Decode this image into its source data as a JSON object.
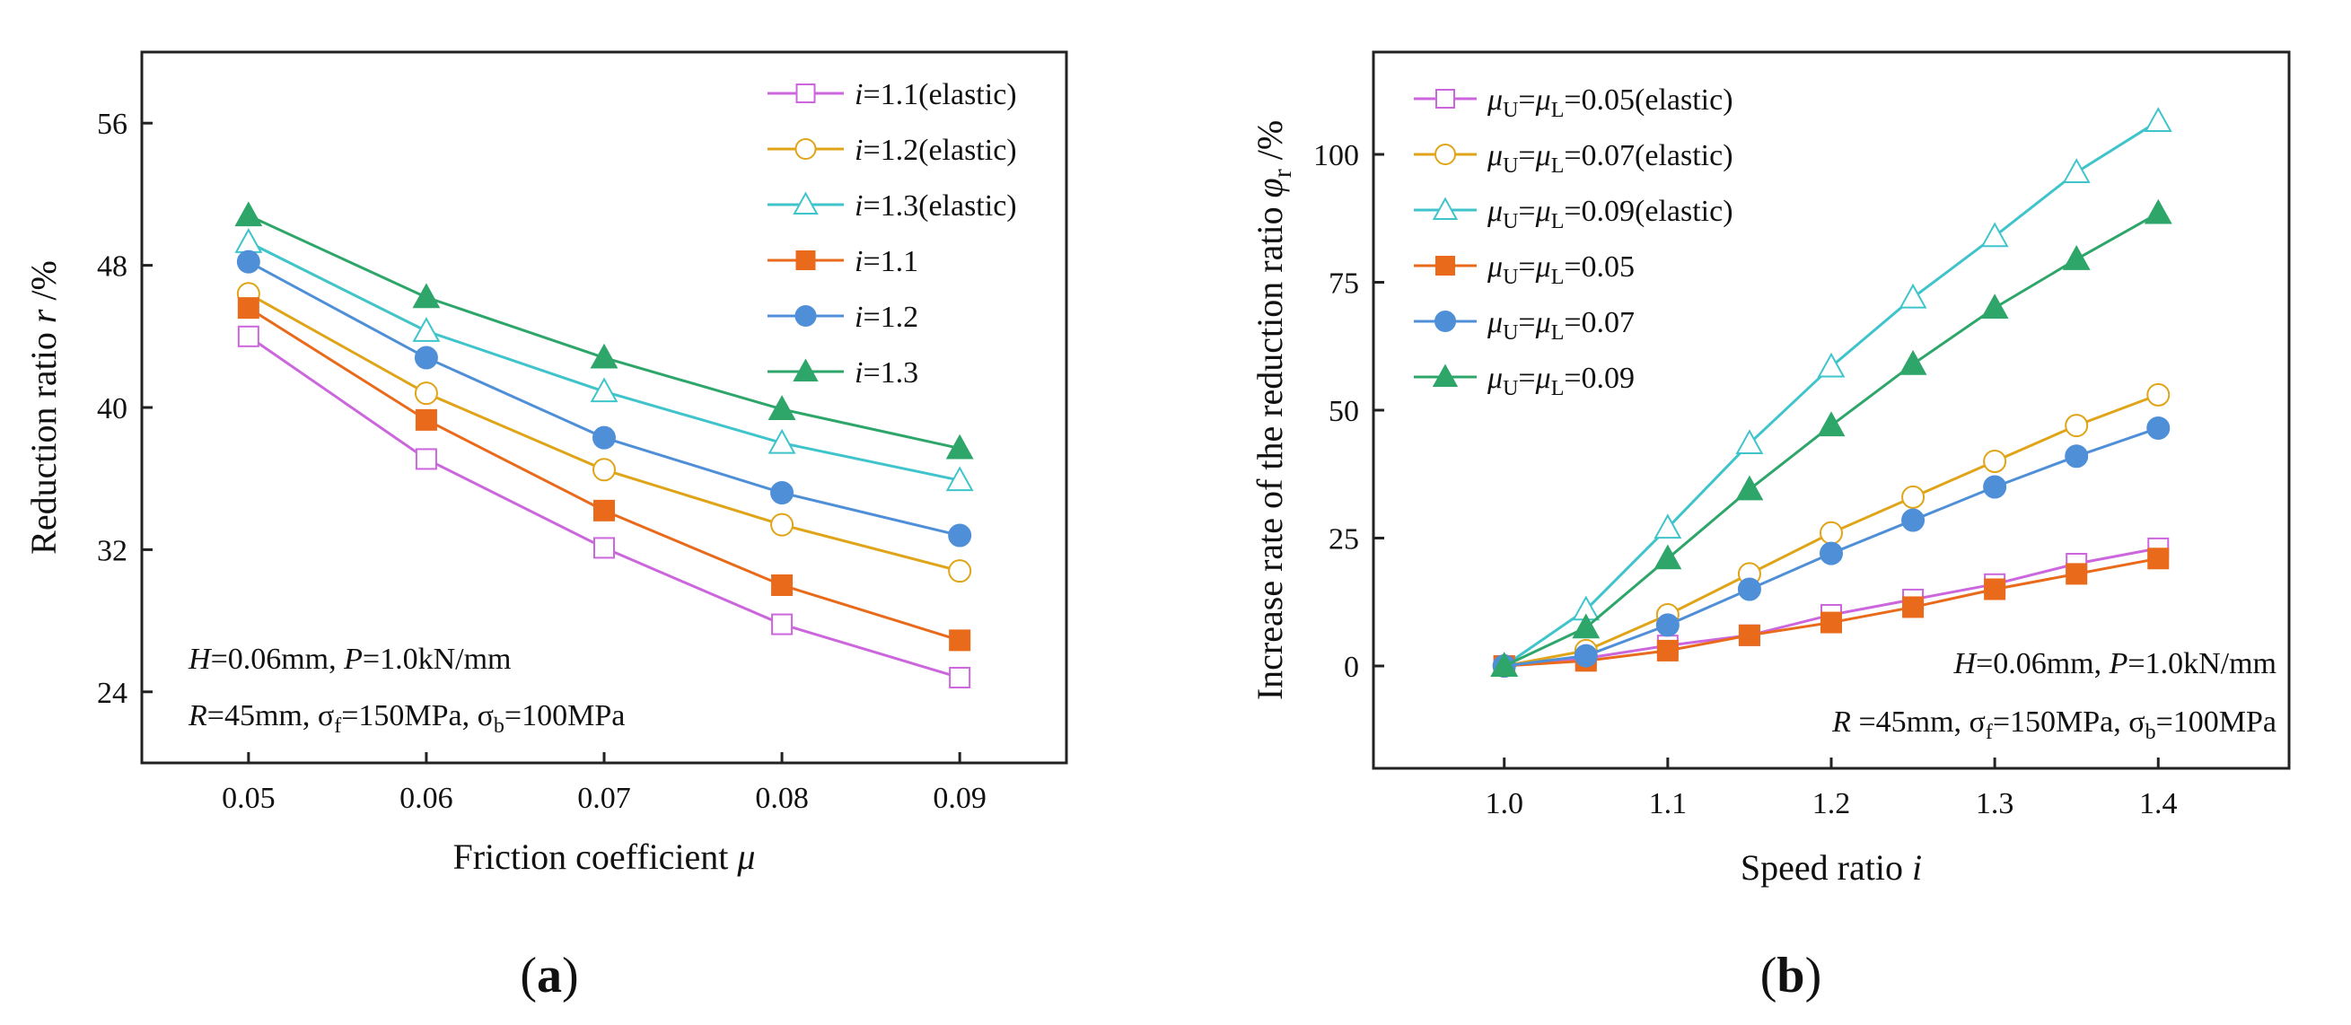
{
  "chart_data": [
    {
      "type": "line",
      "panel_label_parts": [
        "(",
        "a",
        ")"
      ],
      "xlabel_parts": [
        "Friction coefficient ",
        "μ"
      ],
      "ylabel_parts": [
        "Reduction ratio ",
        "r",
        " /%"
      ],
      "x": [
        0.05,
        0.06,
        0.07,
        0.08,
        0.09
      ],
      "xticks": [
        "0.05",
        "0.06",
        "0.07",
        "0.08",
        "0.09"
      ],
      "xlim": [
        0.044,
        0.096
      ],
      "yticks": [
        "24",
        "32",
        "40",
        "48",
        "56"
      ],
      "ytick_values": [
        24,
        32,
        40,
        48,
        56
      ],
      "ylim": [
        20,
        60
      ],
      "legend_position": "top-right",
      "annotation": {
        "line1": [
          "H",
          "=0.06mm, ",
          "P",
          "=1.0kN/mm"
        ],
        "line2": [
          "R",
          "=45mm, σ",
          "f",
          "=150MPa, σ",
          "b",
          "=100MPa"
        ]
      },
      "series": [
        {
          "legend_parts": [
            "i",
            "=1.1(elastic)"
          ],
          "color": "#cc66dd",
          "marker": "square",
          "filled": false,
          "values": [
            44.0,
            37.1,
            32.1,
            27.8,
            24.8
          ]
        },
        {
          "legend_parts": [
            "i",
            "=1.2(elastic)"
          ],
          "color": "#e0a418",
          "marker": "circle",
          "filled": false,
          "values": [
            46.4,
            40.8,
            36.5,
            33.4,
            30.8
          ]
        },
        {
          "legend_parts": [
            "i",
            "=1.3(elastic)"
          ],
          "color": "#3fc4cc",
          "marker": "triangle",
          "filled": false,
          "values": [
            49.3,
            44.3,
            40.9,
            38.0,
            35.9
          ]
        },
        {
          "legend_parts": [
            "i",
            "=1.1"
          ],
          "color": "#e86a1a",
          "marker": "square",
          "filled": true,
          "values": [
            45.6,
            39.3,
            34.2,
            30.0,
            26.9
          ]
        },
        {
          "legend_parts": [
            "i",
            "=1.2"
          ],
          "color": "#4f8fd8",
          "marker": "circle",
          "filled": true,
          "values": [
            48.2,
            42.8,
            38.3,
            35.2,
            32.8
          ]
        },
        {
          "legend_parts": [
            "i",
            "=1.3"
          ],
          "color": "#2ea66a",
          "marker": "triangle",
          "filled": true,
          "values": [
            50.8,
            46.2,
            42.8,
            39.9,
            37.7
          ]
        }
      ]
    },
    {
      "type": "line",
      "panel_label_parts": [
        "(",
        "b",
        ")"
      ],
      "xlabel_parts": [
        "Speed ratio ",
        "i"
      ],
      "ylabel_parts": [
        "Increase rate of the reduction ratio ",
        "φ",
        "r",
        " /%"
      ],
      "x": [
        1.0,
        1.05,
        1.1,
        1.15,
        1.2,
        1.25,
        1.3,
        1.35,
        1.4
      ],
      "xticks": [
        "1.0",
        "1.1",
        "1.2",
        "1.3",
        "1.4"
      ],
      "xtick_values": [
        1.0,
        1.1,
        1.2,
        1.3,
        1.4
      ],
      "xlim": [
        0.92,
        1.48
      ],
      "yticks": [
        "0",
        "25",
        "50",
        "75",
        "100"
      ],
      "ytick_values": [
        0,
        25,
        50,
        75,
        100
      ],
      "ylim": [
        -20,
        120
      ],
      "legend_position": "top-left",
      "annotation": {
        "line1": [
          "H",
          "=0.06mm, ",
          "P",
          "=1.0kN/mm"
        ],
        "line2": [
          "R",
          " =45mm, σ",
          "f",
          "=150MPa, σ",
          "b",
          "=100MPa"
        ]
      },
      "series": [
        {
          "legend_parts": [
            "μ",
            "U",
            "=",
            "μ",
            "L",
            "=0.05(elastic)"
          ],
          "color": "#cc66dd",
          "marker": "square",
          "filled": false,
          "values": [
            0,
            1.5,
            4,
            6,
            10,
            13,
            16,
            20,
            23
          ]
        },
        {
          "legend_parts": [
            "μ",
            "U",
            "=",
            "μ",
            "L",
            "=0.07(elastic)"
          ],
          "color": "#e0a418",
          "marker": "circle",
          "filled": false,
          "values": [
            0,
            3,
            10,
            18,
            26,
            33,
            40,
            47,
            53
          ]
        },
        {
          "legend_parts": [
            "μ",
            "U",
            "=",
            "μ",
            "L",
            "=0.09(elastic)"
          ],
          "color": "#3fc4cc",
          "marker": "triangle",
          "filled": false,
          "values": [
            0,
            11,
            27,
            43.5,
            58.5,
            72,
            84,
            96.5,
            106.5
          ]
        },
        {
          "legend_parts": [
            "μ",
            "U",
            "=",
            "μ",
            "L",
            "=0.05"
          ],
          "color": "#e86a1a",
          "marker": "square",
          "filled": true,
          "values": [
            0,
            1,
            3,
            6,
            8.5,
            11.5,
            15,
            18,
            21
          ]
        },
        {
          "legend_parts": [
            "μ",
            "U",
            "=",
            "μ",
            "L",
            "=0.07"
          ],
          "color": "#4f8fd8",
          "marker": "circle",
          "filled": true,
          "values": [
            0,
            2,
            8,
            15,
            22,
            28.5,
            35,
            41,
            46.5
          ]
        },
        {
          "legend_parts": [
            "μ",
            "U",
            "=",
            "μ",
            "L",
            "=0.09"
          ],
          "color": "#2ea66a",
          "marker": "triangle",
          "filled": true,
          "values": [
            0,
            7.5,
            21,
            34.5,
            47,
            59,
            70,
            79.5,
            88.5
          ]
        }
      ]
    }
  ]
}
